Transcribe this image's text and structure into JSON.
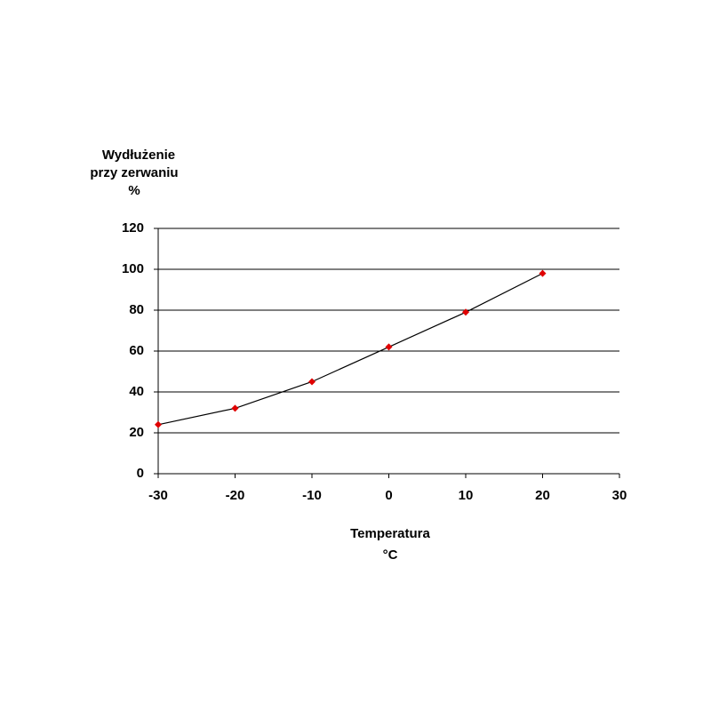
{
  "chart_data": {
    "type": "line",
    "ylabel": [
      "Wydłużenie",
      "przy zerwaniu",
      "%"
    ],
    "xlabel": [
      "Temperatura",
      "°C"
    ],
    "x": [
      -30,
      -20,
      -10,
      0,
      10,
      20
    ],
    "series": [
      {
        "name": "Wydłużenie przy zerwaniu",
        "color": "#000000",
        "marker_color": "#e00000",
        "values": [
          24,
          32,
          45,
          62,
          79,
          98
        ]
      }
    ],
    "xlim": [
      -30,
      30
    ],
    "xticks": [
      -30,
      -20,
      -10,
      0,
      10,
      20,
      30
    ],
    "ylim": [
      0,
      120
    ],
    "yticks": [
      0,
      20,
      40,
      60,
      80,
      100,
      120
    ],
    "grid": true
  }
}
